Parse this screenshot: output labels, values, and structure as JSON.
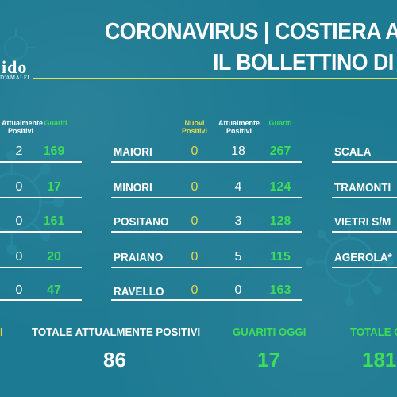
{
  "title": {
    "line1": "CORONAVIRUS | COSTIERA A",
    "line2": "IL BOLLETTINO DI"
  },
  "logo": {
    "text": "ido",
    "sub": "D'AMALFI"
  },
  "headers": {
    "attualmente_positivi": "Attualmente Positivi",
    "guariti": "Guariti",
    "nuovi_positivi": "Nuovi Positivi"
  },
  "left_table": {
    "rows": [
      {
        "attualmente": "2",
        "guariti": "169"
      },
      {
        "attualmente": "0",
        "guariti": "17"
      },
      {
        "attualmente": "0",
        "guariti": "161"
      },
      {
        "attualmente": "0",
        "guariti": "20"
      },
      {
        "attualmente": "0",
        "guariti": "47"
      }
    ]
  },
  "middle_table": {
    "rows": [
      {
        "town": "MAIORI",
        "nuovi": "0",
        "attualmente": "18",
        "guariti": "267"
      },
      {
        "town": "MINORI",
        "nuovi": "0",
        "attualmente": "4",
        "guariti": "124"
      },
      {
        "town": "POSITANO",
        "nuovi": "0",
        "attualmente": "3",
        "guariti": "128"
      },
      {
        "town": "PRAIANO",
        "nuovi": "0",
        "attualmente": "5",
        "guariti": "115"
      },
      {
        "town": "RAVELLO",
        "nuovi": "0",
        "attualmente": "0",
        "guariti": "163"
      }
    ]
  },
  "right_table": {
    "towns": [
      "SCALA",
      "TRAMONTI",
      "VIETRI S/M",
      "AGEROLA*"
    ]
  },
  "totals": {
    "left_fragment": "I",
    "attualmente_label": "TOTALE ATTUALMENTE POSITIVI",
    "attualmente_value": "86",
    "guariti_oggi_label": "GUARITI OGGI",
    "guariti_oggi_value": "17",
    "totale_g_label": "TOTALE G",
    "totale_g_value": "181"
  },
  "colors": {
    "background": "#1c7a92",
    "white": "#ffffff",
    "yellow": "#e8d846",
    "green": "#3edc5a"
  }
}
